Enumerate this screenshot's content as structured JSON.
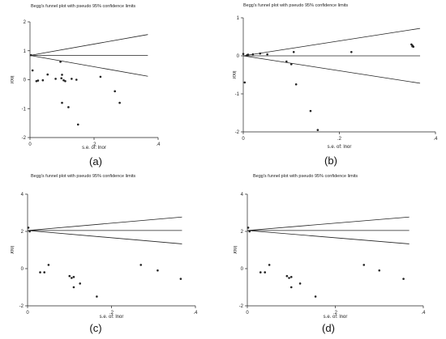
{
  "chart_data": [
    {
      "panel": "(a)",
      "type": "scatter",
      "title": "Begg's funnel plot with pseudo 95% confidence limits",
      "xlabel": "s.e. of: lnor",
      "ylabel": "lnor",
      "xlim": [
        0,
        0.4
      ],
      "ylim": [
        -2,
        2
      ],
      "xticks": [
        "0",
        ".2",
        ".4"
      ],
      "yticks": [
        "-2",
        "-1",
        "0",
        "1",
        "2"
      ],
      "center": 0.84,
      "points": [
        [
          0.003,
          0.85
        ],
        [
          0.008,
          0.32
        ],
        [
          0.02,
          -0.05
        ],
        [
          0.025,
          -0.03
        ],
        [
          0.04,
          -0.02
        ],
        [
          0.055,
          0.18
        ],
        [
          0.08,
          0.03
        ],
        [
          0.095,
          0.62
        ],
        [
          0.098,
          0.05
        ],
        [
          0.1,
          0.17
        ],
        [
          0.1,
          -0.8
        ],
        [
          0.105,
          -0.02
        ],
        [
          0.11,
          -0.05
        ],
        [
          0.12,
          -0.95
        ],
        [
          0.13,
          0.03
        ],
        [
          0.145,
          0.0
        ],
        [
          0.15,
          -1.55
        ],
        [
          0.22,
          0.1
        ],
        [
          0.265,
          -0.4
        ],
        [
          0.28,
          -0.8
        ]
      ]
    },
    {
      "panel": "(b)",
      "type": "scatter",
      "title": "Begg's funnel plot with pseudo 95% confidence limits",
      "xlabel": "s.e. of: lnor",
      "ylabel": "lnor",
      "xlim": [
        0,
        0.4
      ],
      "ylim": [
        -2,
        1
      ],
      "xticks": [
        "0",
        ".2",
        ".4"
      ],
      "yticks": [
        "-2",
        "-1",
        "0",
        "1"
      ],
      "center": 0.0,
      "points": [
        [
          0.0,
          0.05
        ],
        [
          0.003,
          -0.7
        ],
        [
          0.008,
          0.02
        ],
        [
          0.01,
          0.03
        ],
        [
          0.02,
          0.04
        ],
        [
          0.035,
          0.06
        ],
        [
          0.05,
          0.04
        ],
        [
          0.09,
          -0.15
        ],
        [
          0.1,
          -0.22
        ],
        [
          0.105,
          0.1
        ],
        [
          0.11,
          -0.75
        ],
        [
          0.14,
          -1.45
        ],
        [
          0.155,
          -1.95
        ],
        [
          0.225,
          0.1
        ],
        [
          0.35,
          0.3
        ],
        [
          0.352,
          0.25
        ],
        [
          0.352,
          0.27
        ],
        [
          0.354,
          0.24
        ]
      ]
    },
    {
      "panel": "(c)",
      "type": "scatter",
      "title": "Begg's funnel plot with pseudo 95% confidence limits",
      "xlabel": "s.e. of: lnor",
      "ylabel": "lnor",
      "xlim": [
        0,
        0.4
      ],
      "ylim": [
        -2,
        4
      ],
      "xticks": [
        "0",
        ".2",
        ".4"
      ],
      "yticks": [
        "-2",
        "0",
        "2",
        "4"
      ],
      "center": 2.05,
      "points": [
        [
          0.002,
          2.2
        ],
        [
          0.005,
          2.0
        ],
        [
          0.03,
          -0.2
        ],
        [
          0.04,
          -0.2
        ],
        [
          0.05,
          0.2
        ],
        [
          0.1,
          -0.4
        ],
        [
          0.105,
          -0.5
        ],
        [
          0.11,
          -0.45
        ],
        [
          0.11,
          -1.0
        ],
        [
          0.125,
          -0.8
        ],
        [
          0.165,
          -1.5
        ],
        [
          0.27,
          0.2
        ],
        [
          0.31,
          -0.1
        ],
        [
          0.365,
          -0.55
        ]
      ]
    },
    {
      "panel": "(d)",
      "type": "scatter",
      "title": "Begg's funnel plot with pseudo 95% confidence limits",
      "xlabel": "s.e. of: lnor",
      "ylabel": "lnor",
      "xlim": [
        0,
        0.4
      ],
      "ylim": [
        -2,
        4
      ],
      "xticks": [
        "0",
        ".2",
        ".4"
      ],
      "yticks": [
        "-2",
        "0",
        "2",
        "4"
      ],
      "center": 2.05,
      "points": [
        [
          0.002,
          2.2
        ],
        [
          0.005,
          2.0
        ],
        [
          0.03,
          -0.2
        ],
        [
          0.04,
          -0.2
        ],
        [
          0.05,
          0.2
        ],
        [
          0.09,
          -0.4
        ],
        [
          0.095,
          -0.5
        ],
        [
          0.1,
          -0.45
        ],
        [
          0.1,
          -1.0
        ],
        [
          0.12,
          -0.8
        ],
        [
          0.155,
          -1.5
        ],
        [
          0.265,
          0.2
        ],
        [
          0.3,
          -0.1
        ],
        [
          0.355,
          -0.55
        ]
      ]
    }
  ]
}
